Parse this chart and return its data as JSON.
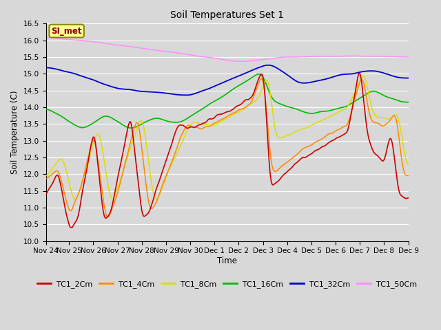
{
  "title": "Soil Temperatures Set 1",
  "xlabel": "Time",
  "ylabel": "Soil Temperature (C)",
  "ylim": [
    10.0,
    16.5
  ],
  "yticks": [
    10.0,
    10.5,
    11.0,
    11.5,
    12.0,
    12.5,
    13.0,
    13.5,
    14.0,
    14.5,
    15.0,
    15.5,
    16.0,
    16.5
  ],
  "x_labels": [
    "Nov 24",
    "Nov 25",
    "Nov 26",
    "Nov 27",
    "Nov 28",
    "Nov 29",
    "Nov 30",
    "Dec 1",
    "Dec 2",
    "Dec 3",
    "Dec 4",
    "Dec 5",
    "Dec 6",
    "Dec 7",
    "Dec 8",
    "Dec 9"
  ],
  "series_colors": {
    "TC1_2Cm": "#cc0000",
    "TC1_4Cm": "#ff8800",
    "TC1_8Cm": "#dddd00",
    "TC1_16Cm": "#00bb00",
    "TC1_32Cm": "#0000cc",
    "TC1_50Cm": "#ff88ff"
  },
  "annotation_text": "SI_met",
  "annotation_bbox_facecolor": "#ffff99",
  "annotation_bbox_edgecolor": "#888800",
  "fig_facecolor": "#d8d8d8",
  "plot_bg_color": "#d8d8d8",
  "grid_color": "#ffffff",
  "n_points": 360
}
